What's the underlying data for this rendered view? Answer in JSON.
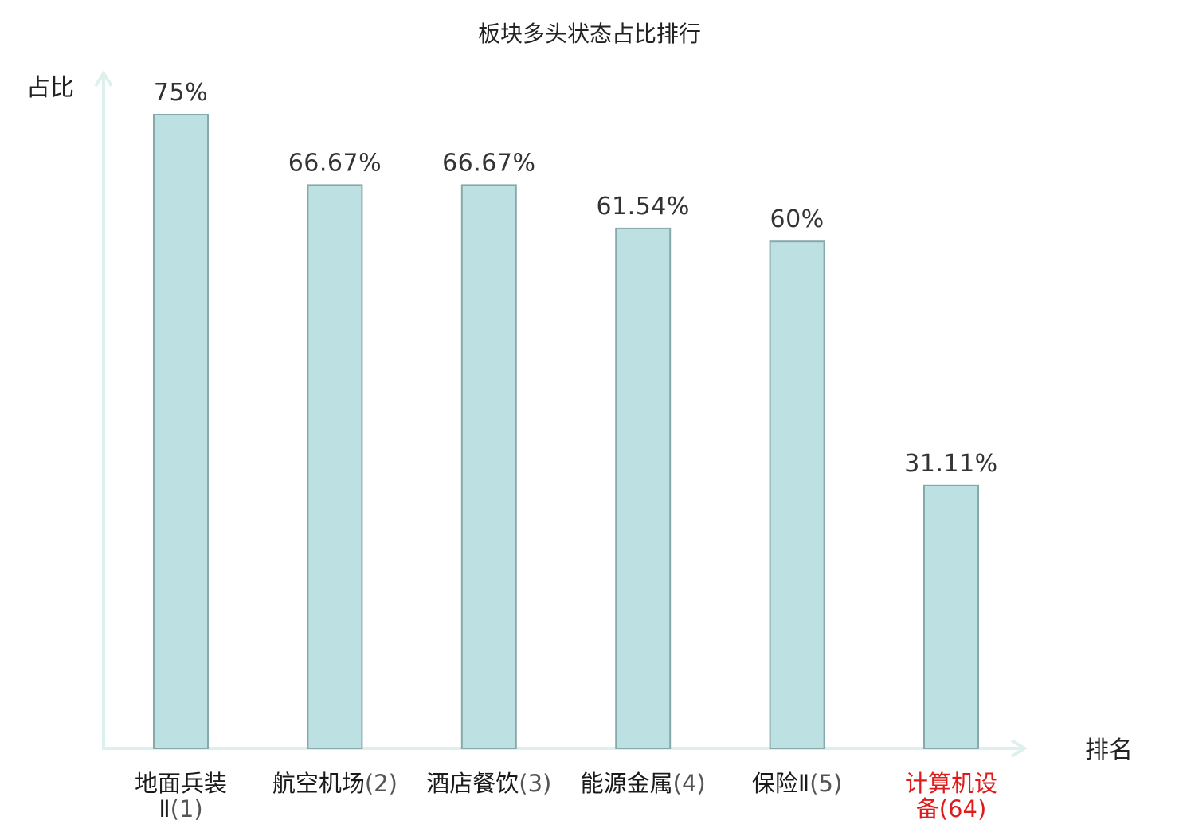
{
  "chart_data": {
    "type": "bar",
    "title": "板块多头状态占比排行",
    "ylabel": "占比",
    "xlabel": "排名",
    "ylim": [
      0,
      75
    ],
    "grid": false,
    "categories": [
      {
        "name": "地面兵装",
        "name_line2": "Ⅱ",
        "rank": "(1)",
        "highlight": false
      },
      {
        "name": "航空机场",
        "name_line2": "",
        "rank": "(2)",
        "highlight": false
      },
      {
        "name": "酒店餐饮",
        "name_line2": "",
        "rank": "(3)",
        "highlight": false
      },
      {
        "name": "能源金属",
        "name_line2": "",
        "rank": "(4)",
        "highlight": false
      },
      {
        "name": "保险Ⅱ",
        "name_line2": "",
        "rank": "(5)",
        "highlight": false
      },
      {
        "name": "计算机设",
        "name_line2": "备",
        "rank": "(64)",
        "highlight": true
      }
    ],
    "values": [
      75,
      66.67,
      66.67,
      61.54,
      60,
      31.11
    ],
    "value_labels": [
      "75%",
      "66.67%",
      "66.67%",
      "61.54%",
      "60%",
      "31.11%"
    ]
  },
  "colors": {
    "bar_fill": "#bde0e3",
    "bar_stroke": "#86a9ab",
    "axis": "#dcf1ee",
    "highlight_text": "#e01b1b"
  }
}
